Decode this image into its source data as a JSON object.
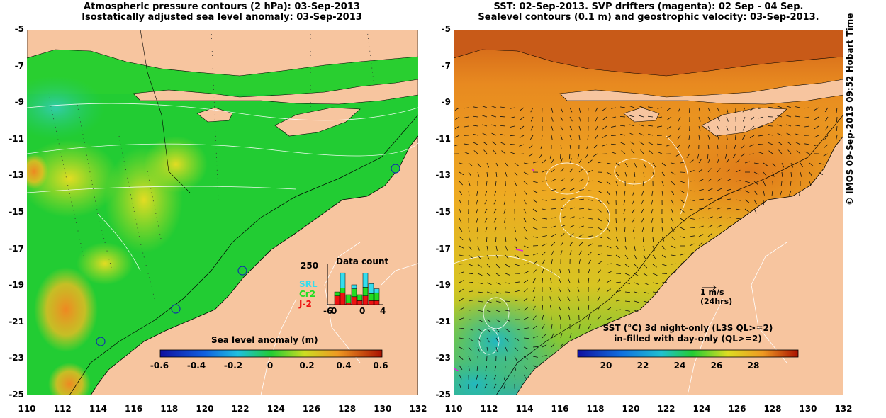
{
  "left_map": {
    "title_line1": "Atmospheric pressure contours (2 hPa): 03-Sep-2013",
    "title_line2": "Isostatically adjusted sea level anomaly: 03-Sep-2013",
    "colorbar_label": "Sea level anomaly (m)",
    "colorbar_ticks": [
      "-0.6",
      "-0.4",
      "-0.2",
      "0",
      "0.2",
      "0.4",
      "0.6"
    ],
    "inset": {
      "title": "Data count",
      "ymax_label": "250",
      "xticks": [
        "-6",
        "0",
        "4"
      ],
      "x_left_extra": "0",
      "legend": [
        {
          "label": "SRL",
          "color": "#33ddee"
        },
        {
          "label": "Cr2",
          "color": "#22dd22"
        },
        {
          "label": "J-2",
          "color": "#ee1111"
        }
      ],
      "bars": [
        {
          "j2": 0.0,
          "cr2": 0.0,
          "srl": 0.0
        },
        {
          "j2": 0.22,
          "cr2": 0.1,
          "srl": 0.0
        },
        {
          "j2": 0.3,
          "cr2": 0.12,
          "srl": 0.38
        },
        {
          "j2": 0.05,
          "cr2": 0.2,
          "srl": 0.0
        },
        {
          "j2": 0.2,
          "cr2": 0.2,
          "srl": 0.1
        },
        {
          "j2": 0.1,
          "cr2": 0.15,
          "srl": 0.0
        },
        {
          "j2": 0.22,
          "cr2": 0.22,
          "srl": 0.35
        },
        {
          "j2": 0.1,
          "cr2": 0.18,
          "srl": 0.25
        },
        {
          "j2": 0.1,
          "cr2": 0.2,
          "srl": 0.1
        }
      ]
    }
  },
  "right_map": {
    "title_line1": "SST: 02-Sep-2013. SVP drifters (magenta): 02 Sep - 04 Sep.",
    "title_line2": "Sealevel contours (0.1 m) and geostrophic velocity: 03-Sep-2013.",
    "colorbar_label_line1": "SST (°C)  3d night-only (L3S QL>=2)",
    "colorbar_label_line2": "in-filled with day-only (QL>=2)",
    "colorbar_ticks": [
      "20",
      "22",
      "24",
      "26",
      "28"
    ],
    "velocity_scale_line1": "1 m/s",
    "velocity_scale_line2": "(24hrs)"
  },
  "axes": {
    "lat_labels": [
      "-5",
      "-7",
      "-9",
      "-11",
      "-13",
      "-15",
      "-17",
      "-19",
      "-21",
      "-23",
      "-25"
    ],
    "lon_labels": [
      "110",
      "112",
      "114",
      "116",
      "118",
      "120",
      "122",
      "124",
      "126",
      "128",
      "130",
      "132"
    ]
  },
  "credit": "© IMOS 09-Sep-2013 09:52 Hobart Time",
  "colors": {
    "land": "#f7c59f",
    "sla_low": "#1010a0",
    "sla_zero": "#22cc22",
    "sla_high": "#aa1100",
    "sst_hot": "#c85a10",
    "sst_warm": "#f0a020",
    "sst_cool": "#10a0c0"
  }
}
